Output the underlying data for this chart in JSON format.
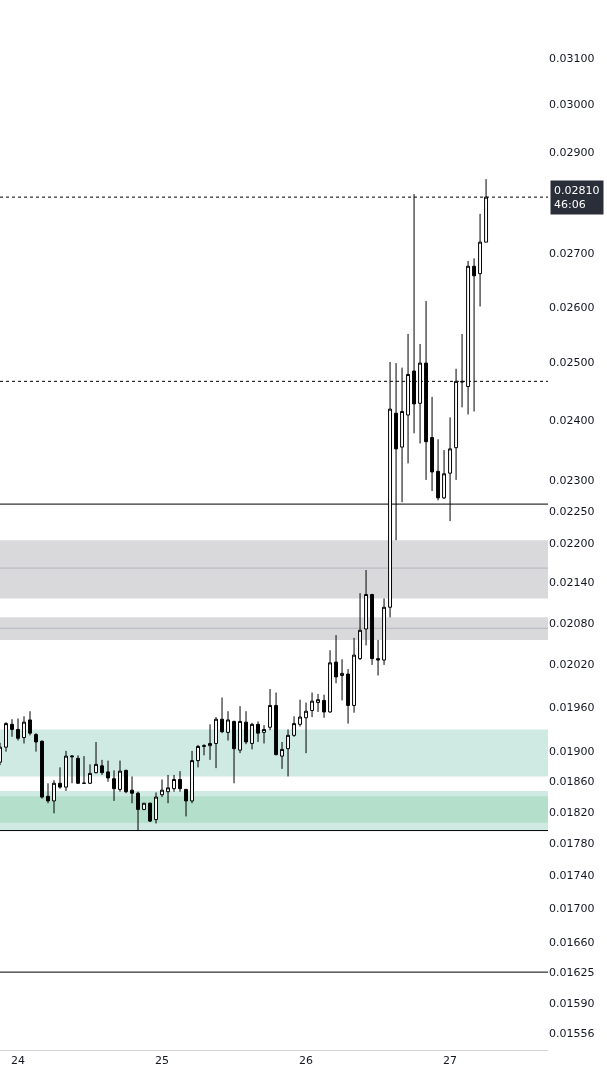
{
  "chart_data": {
    "type": "candlestick",
    "x": [
      23.875,
      23.9167,
      23.9583,
      24,
      24.0417,
      24.0833,
      24.125,
      24.1667,
      24.2083,
      24.25,
      24.2917,
      24.3333,
      24.375,
      24.4167,
      24.4583,
      24.5,
      24.5417,
      24.5833,
      24.625,
      24.6667,
      24.7083,
      24.75,
      24.7917,
      24.8333,
      24.875,
      24.9167,
      24.9583,
      25,
      25.0417,
      25.0833,
      25.125,
      25.1667,
      25.2083,
      25.25,
      25.2917,
      25.3333,
      25.375,
      25.4167,
      25.4583,
      25.5,
      25.5417,
      25.5833,
      25.625,
      25.6667,
      25.7083,
      25.75,
      25.7917,
      25.8333,
      25.875,
      25.9167,
      25.9583,
      26,
      26.0417,
      26.0833,
      26.125,
      26.1667,
      26.2083,
      26.25,
      26.2917,
      26.3333,
      26.375,
      26.4167,
      26.4583,
      26.5,
      26.5417,
      26.5833,
      26.625,
      26.6667,
      26.7083,
      26.75,
      26.7917,
      26.8333,
      26.875,
      26.9167,
      26.9583,
      27,
      27.0417,
      27.0833,
      27.125,
      27.1667,
      27.2083,
      27.25
    ],
    "ohlc": [
      [
        0.01885,
        0.01911,
        0.01881,
        0.01905
      ],
      [
        0.01905,
        0.01939,
        0.01899,
        0.01937
      ],
      [
        0.01936,
        0.01943,
        0.01919,
        0.01929
      ],
      [
        0.01929,
        0.01944,
        0.01914,
        0.01917
      ],
      [
        0.01918,
        0.01947,
        0.0191,
        0.01939
      ],
      [
        0.01942,
        0.01954,
        0.01921,
        0.01924
      ],
      [
        0.01922,
        0.01924,
        0.01899,
        0.01912
      ],
      [
        0.01913,
        0.01914,
        0.01837,
        0.01839
      ],
      [
        0.0184,
        0.01857,
        0.01831,
        0.01834
      ],
      [
        0.01834,
        0.01861,
        0.01818,
        0.01857
      ],
      [
        0.01857,
        0.01878,
        0.0185,
        0.01852
      ],
      [
        0.01852,
        0.019,
        0.01847,
        0.01893
      ],
      [
        0.01892,
        0.01894,
        0.01857,
        0.01893
      ],
      [
        0.0189,
        0.01894,
        0.01856,
        0.01857
      ],
      [
        0.01857,
        0.01893,
        0.01856,
        0.01857
      ],
      [
        0.01857,
        0.01882,
        0.01856,
        0.0187
      ],
      [
        0.01871,
        0.01912,
        0.0187,
        0.01882
      ],
      [
        0.0188,
        0.01888,
        0.01868,
        0.01871
      ],
      [
        0.01872,
        0.01887,
        0.01859,
        0.01864
      ],
      [
        0.01863,
        0.01874,
        0.01834,
        0.0185
      ],
      [
        0.01849,
        0.01887,
        0.01846,
        0.01873
      ],
      [
        0.01874,
        0.01875,
        0.01844,
        0.01846
      ],
      [
        0.01848,
        0.01866,
        0.01831,
        0.01844
      ],
      [
        0.01844,
        0.01846,
        0.01796,
        0.01823
      ],
      [
        0.01823,
        0.01831,
        0.01822,
        0.01831
      ],
      [
        0.01831,
        0.01832,
        0.01807,
        0.01808
      ],
      [
        0.0181,
        0.01845,
        0.01805,
        0.01839
      ],
      [
        0.01842,
        0.01862,
        0.01839,
        0.01848
      ],
      [
        0.01846,
        0.01868,
        0.01831,
        0.01851
      ],
      [
        0.0185,
        0.01868,
        0.01846,
        0.01862
      ],
      [
        0.01862,
        0.01873,
        0.01846,
        0.0185
      ],
      [
        0.01849,
        0.01849,
        0.01814,
        0.01834
      ],
      [
        0.01834,
        0.019,
        0.01831,
        0.01887
      ],
      [
        0.01887,
        0.01908,
        0.01878,
        0.01906
      ],
      [
        0.01906,
        0.01909,
        0.01894,
        0.01907
      ],
      [
        0.01907,
        0.01936,
        0.01888,
        0.0191
      ],
      [
        0.0191,
        0.01946,
        0.01877,
        0.01943
      ],
      [
        0.01943,
        0.01973,
        0.01924,
        0.01926
      ],
      [
        0.01925,
        0.01954,
        0.01914,
        0.01942
      ],
      [
        0.0194,
        0.01941,
        0.01857,
        0.01903
      ],
      [
        0.01901,
        0.01961,
        0.01897,
        0.0194
      ],
      [
        0.01939,
        0.01954,
        0.01909,
        0.01912
      ],
      [
        0.0191,
        0.01938,
        0.01902,
        0.01936
      ],
      [
        0.01936,
        0.0194,
        0.01912,
        0.01924
      ],
      [
        0.01925,
        0.01935,
        0.0191,
        0.01929
      ],
      [
        0.01932,
        0.01985,
        0.01928,
        0.01962
      ],
      [
        0.01962,
        0.0198,
        0.01894,
        0.01895
      ],
      [
        0.01893,
        0.01912,
        0.01876,
        0.01902
      ],
      [
        0.01903,
        0.01929,
        0.01866,
        0.01921
      ],
      [
        0.01921,
        0.01947,
        0.01919,
        0.01937
      ],
      [
        0.01936,
        0.0197,
        0.01933,
        0.01946
      ],
      [
        0.01945,
        0.01966,
        0.01897,
        0.01954
      ],
      [
        0.01955,
        0.0198,
        0.01946,
        0.01968
      ],
      [
        0.01966,
        0.01978,
        0.01953,
        0.0197
      ],
      [
        0.01969,
        0.01977,
        0.01945,
        0.01953
      ],
      [
        0.01953,
        0.0204,
        0.01952,
        0.02022
      ],
      [
        0.02023,
        0.02062,
        0.01993,
        0.02002
      ],
      [
        0.02004,
        0.02027,
        0.01969,
        0.02007
      ],
      [
        0.02006,
        0.02013,
        0.01937,
        0.01962
      ],
      [
        0.01962,
        0.02058,
        0.01952,
        0.02033
      ],
      [
        0.02028,
        0.02124,
        0.02026,
        0.02069
      ],
      [
        0.02071,
        0.02159,
        0.02047,
        0.02122
      ],
      [
        0.02122,
        0.02123,
        0.02019,
        0.02028
      ],
      [
        0.02028,
        0.02055,
        0.02004,
        0.02026
      ],
      [
        0.02026,
        0.02116,
        0.02019,
        0.02103
      ],
      [
        0.02103,
        0.02501,
        0.02088,
        0.02419
      ],
      [
        0.02412,
        0.02499,
        0.02205,
        0.02352
      ],
      [
        0.02355,
        0.02491,
        0.02265,
        0.02415
      ],
      [
        0.02409,
        0.02551,
        0.02328,
        0.02479
      ],
      [
        0.02485,
        0.02816,
        0.02378,
        0.02428
      ],
      [
        0.02429,
        0.02533,
        0.02361,
        0.02499
      ],
      [
        0.02499,
        0.02611,
        0.02301,
        0.02364
      ],
      [
        0.02371,
        0.0244,
        0.02283,
        0.02314
      ],
      [
        0.02315,
        0.02368,
        0.02268,
        0.02272
      ],
      [
        0.02272,
        0.0235,
        0.0227,
        0.02311
      ],
      [
        0.02312,
        0.02405,
        0.02235,
        0.02352
      ],
      [
        0.02354,
        0.02489,
        0.02301,
        0.02467
      ],
      [
        0.02467,
        0.02551,
        0.02422,
        0.02466
      ],
      [
        0.02458,
        0.02686,
        0.0241,
        0.02676
      ],
      [
        0.02676,
        0.02691,
        0.02415,
        0.02658
      ],
      [
        0.02662,
        0.02777,
        0.02601,
        0.02722
      ],
      [
        0.02722,
        0.02846,
        0.02722,
        0.0281
      ]
    ],
    "xlim": [
      23.875,
      27.68
    ],
    "xticks": [
      24,
      25,
      26,
      27
    ],
    "log": true,
    "ylim": [
      0.01538,
      0.0323
    ],
    "yticks": [
      {
        "value": 0.031,
        "label": "0.03100"
      },
      {
        "value": 0.03,
        "label": "0.03000"
      },
      {
        "value": 0.029,
        "label": "0.02900"
      },
      {
        "value": 0.027,
        "label": "0.02700"
      },
      {
        "value": 0.026,
        "label": "0.02600"
      },
      {
        "value": 0.025,
        "label": "0.02500"
      },
      {
        "value": 0.024,
        "label": "0.02400"
      },
      {
        "value": 0.023,
        "label": "0.02300"
      },
      {
        "value": 0.0225,
        "label": "0.02250"
      },
      {
        "value": 0.022,
        "label": "0.02200"
      },
      {
        "value": 0.0214,
        "label": "0.02140"
      },
      {
        "value": 0.0208,
        "label": "0.02080"
      },
      {
        "value": 0.0202,
        "label": "0.02020"
      },
      {
        "value": 0.0196,
        "label": "0.01960"
      },
      {
        "value": 0.019,
        "label": "0.01900"
      },
      {
        "value": 0.0186,
        "label": "0.01860"
      },
      {
        "value": 0.0182,
        "label": "0.01820"
      },
      {
        "value": 0.0178,
        "label": "0.01780"
      },
      {
        "value": 0.0174,
        "label": "0.01740"
      },
      {
        "value": 0.017,
        "label": "0.01700"
      },
      {
        "value": 0.0166,
        "label": "0.01660"
      },
      {
        "value": 0.01625,
        "label": "0.01625"
      },
      {
        "value": 0.0159,
        "label": "0.01590"
      },
      {
        "value": 0.01556,
        "label": "0.01556"
      }
    ],
    "bands": [
      {
        "axis": "y",
        "from": 0.02116,
        "to": 0.02205,
        "color": "#d9d9dc"
      },
      {
        "axis": "y",
        "from": 0.02055,
        "to": 0.02088,
        "color": "#d9d9dc"
      },
      {
        "axis": "y",
        "from": 0.01866,
        "to": 0.01929,
        "color": "#cfe9e3"
      },
      {
        "axis": "y",
        "from": 0.01796,
        "to": 0.01847,
        "color": "#cfe9e3"
      },
      {
        "axis": "y",
        "from": 0.01806,
        "to": 0.0184,
        "color": "#b3dfcb"
      }
    ],
    "ref_lines": [
      {
        "axis": "y",
        "value": 0.0281,
        "label": "0.02810\n46:06",
        "color": "#000000",
        "line_style": "dotted"
      },
      {
        "axis": "y",
        "value": 0.02467,
        "color": "#000000",
        "line_style": "dotted"
      },
      {
        "axis": "y",
        "value": 0.02262,
        "color": "#000000",
        "line_style": "solid"
      },
      {
        "axis": "y",
        "value": 0.02162,
        "color": "#b2b5be",
        "line_style": "solid"
      },
      {
        "axis": "y",
        "value": 0.02072,
        "color": "#b2b5be",
        "line_style": "solid"
      },
      {
        "axis": "y",
        "value": 0.01796,
        "color": "#000000",
        "line_style": "solid"
      },
      {
        "axis": "y",
        "value": 0.01625,
        "color": "#000000",
        "line_style": "solid"
      }
    ],
    "grid": false
  }
}
